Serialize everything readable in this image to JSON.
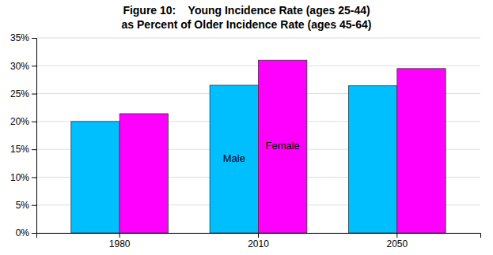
{
  "chart_data": {
    "type": "bar",
    "title": "Figure 10:    Young Incidence Rate (ages 25-44)",
    "subtitle": "as Percent of Older Incidence Rate (ages 45-64)",
    "categories": [
      "1980",
      "2010",
      "2050"
    ],
    "series": [
      {
        "name": "Male",
        "color": "#00BFFF",
        "values": [
          0.2,
          0.265,
          0.264
        ]
      },
      {
        "name": "Female",
        "color": "#FF00FF",
        "values": [
          0.214,
          0.31,
          0.295
        ]
      }
    ],
    "ylim": [
      0,
      0.35
    ],
    "yticks": [
      {
        "value": 0.0,
        "label": "0%"
      },
      {
        "value": 0.05,
        "label": "5%"
      },
      {
        "value": 0.1,
        "label": "10%"
      },
      {
        "value": 0.15,
        "label": "15%"
      },
      {
        "value": 0.2,
        "label": "20%"
      },
      {
        "value": 0.25,
        "label": "25%"
      },
      {
        "value": 0.3,
        "label": "30%"
      },
      {
        "value": 0.35,
        "label": "35%"
      }
    ],
    "grid": true
  }
}
